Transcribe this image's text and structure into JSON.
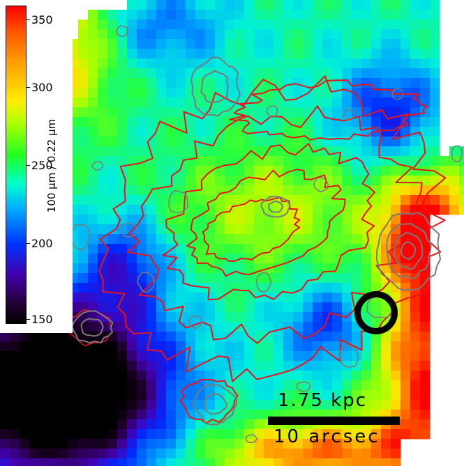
{
  "colorbar": {
    "title": "100 μm / 0.22 μm",
    "ticks": [
      "350",
      "300",
      "250",
      "200",
      "150"
    ]
  },
  "scale": {
    "physical": "1.75 kpc",
    "angular": "10 arcsec"
  },
  "colors": {
    "contour_red": "#e8141c",
    "contour_gray": "#7a7a7a",
    "aperture": "#000000"
  }
}
